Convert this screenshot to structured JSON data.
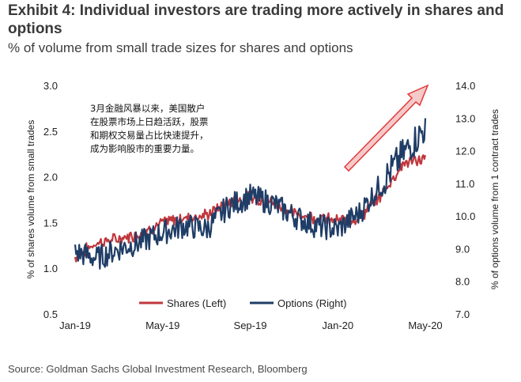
{
  "exhibit": {
    "title": "Exhibit 4: Individual investors are trading more actively in shares and options",
    "subtitle": "% of volume from small trade sizes for shares and options",
    "source": "Source: Goldman Sachs Global Investment Research, Bloomberg"
  },
  "colors": {
    "shares": "#c0373d",
    "options": "#1f3d66",
    "arrow_fill": "#f6c9c9",
    "arrow_stroke": "#e03a3a"
  },
  "chart_data": {
    "type": "line",
    "xlabel": "",
    "x_ticks": [
      "Jan-19",
      "May-19",
      "Sep-19",
      "Jan-20",
      "May-20"
    ],
    "x_range": [
      "2019-01",
      "2020-05"
    ],
    "ylabel_left": "% of shares volume from small trades",
    "ylabel_right": "% of options volume from 1 contract trades",
    "ylim_left": [
      0.5,
      3.0
    ],
    "ylim_right": [
      7.0,
      14.0
    ],
    "y_ticks_left": [
      "0.5",
      "1.0",
      "1.5",
      "2.0",
      "2.5",
      "3.0"
    ],
    "y_ticks_right": [
      "7.0",
      "8.0",
      "9.0",
      "10.0",
      "11.0",
      "12.0",
      "13.0",
      "14.0"
    ],
    "grid": false,
    "legend_position": "bottom",
    "series": [
      {
        "name": "Shares (Left)",
        "axis": "left",
        "x": [
          "2019-01",
          "2019-02",
          "2019-03",
          "2019-04",
          "2019-05",
          "2019-06",
          "2019-07",
          "2019-08",
          "2019-09",
          "2019-10",
          "2019-11",
          "2019-12",
          "2020-01",
          "2020-02",
          "2020-03",
          "2020-04",
          "2020-05"
        ],
        "values": [
          1.12,
          1.28,
          1.32,
          1.38,
          1.5,
          1.55,
          1.58,
          1.72,
          1.78,
          1.72,
          1.6,
          1.55,
          1.52,
          1.55,
          1.8,
          2.15,
          2.2
        ]
      },
      {
        "name": "Options (Right)",
        "axis": "right",
        "x": [
          "2019-01",
          "2019-02",
          "2019-03",
          "2019-04",
          "2019-05",
          "2019-06",
          "2019-07",
          "2019-08",
          "2019-09",
          "2019-10",
          "2019-11",
          "2019-12",
          "2020-01",
          "2020-02",
          "2020-03",
          "2020-04",
          "2020-05"
        ],
        "values": [
          8.9,
          8.7,
          9.0,
          9.2,
          9.5,
          9.7,
          9.6,
          10.3,
          10.6,
          10.4,
          10.0,
          9.7,
          9.6,
          10.1,
          11.0,
          11.9,
          12.7
        ]
      }
    ],
    "annotation": [
      "3月金融风暴以来，美国散户",
      "在股票市场上日趋活跃，股票",
      "和期权交易量占比快速提升，",
      "成为影响股市的重要力量。"
    ]
  }
}
